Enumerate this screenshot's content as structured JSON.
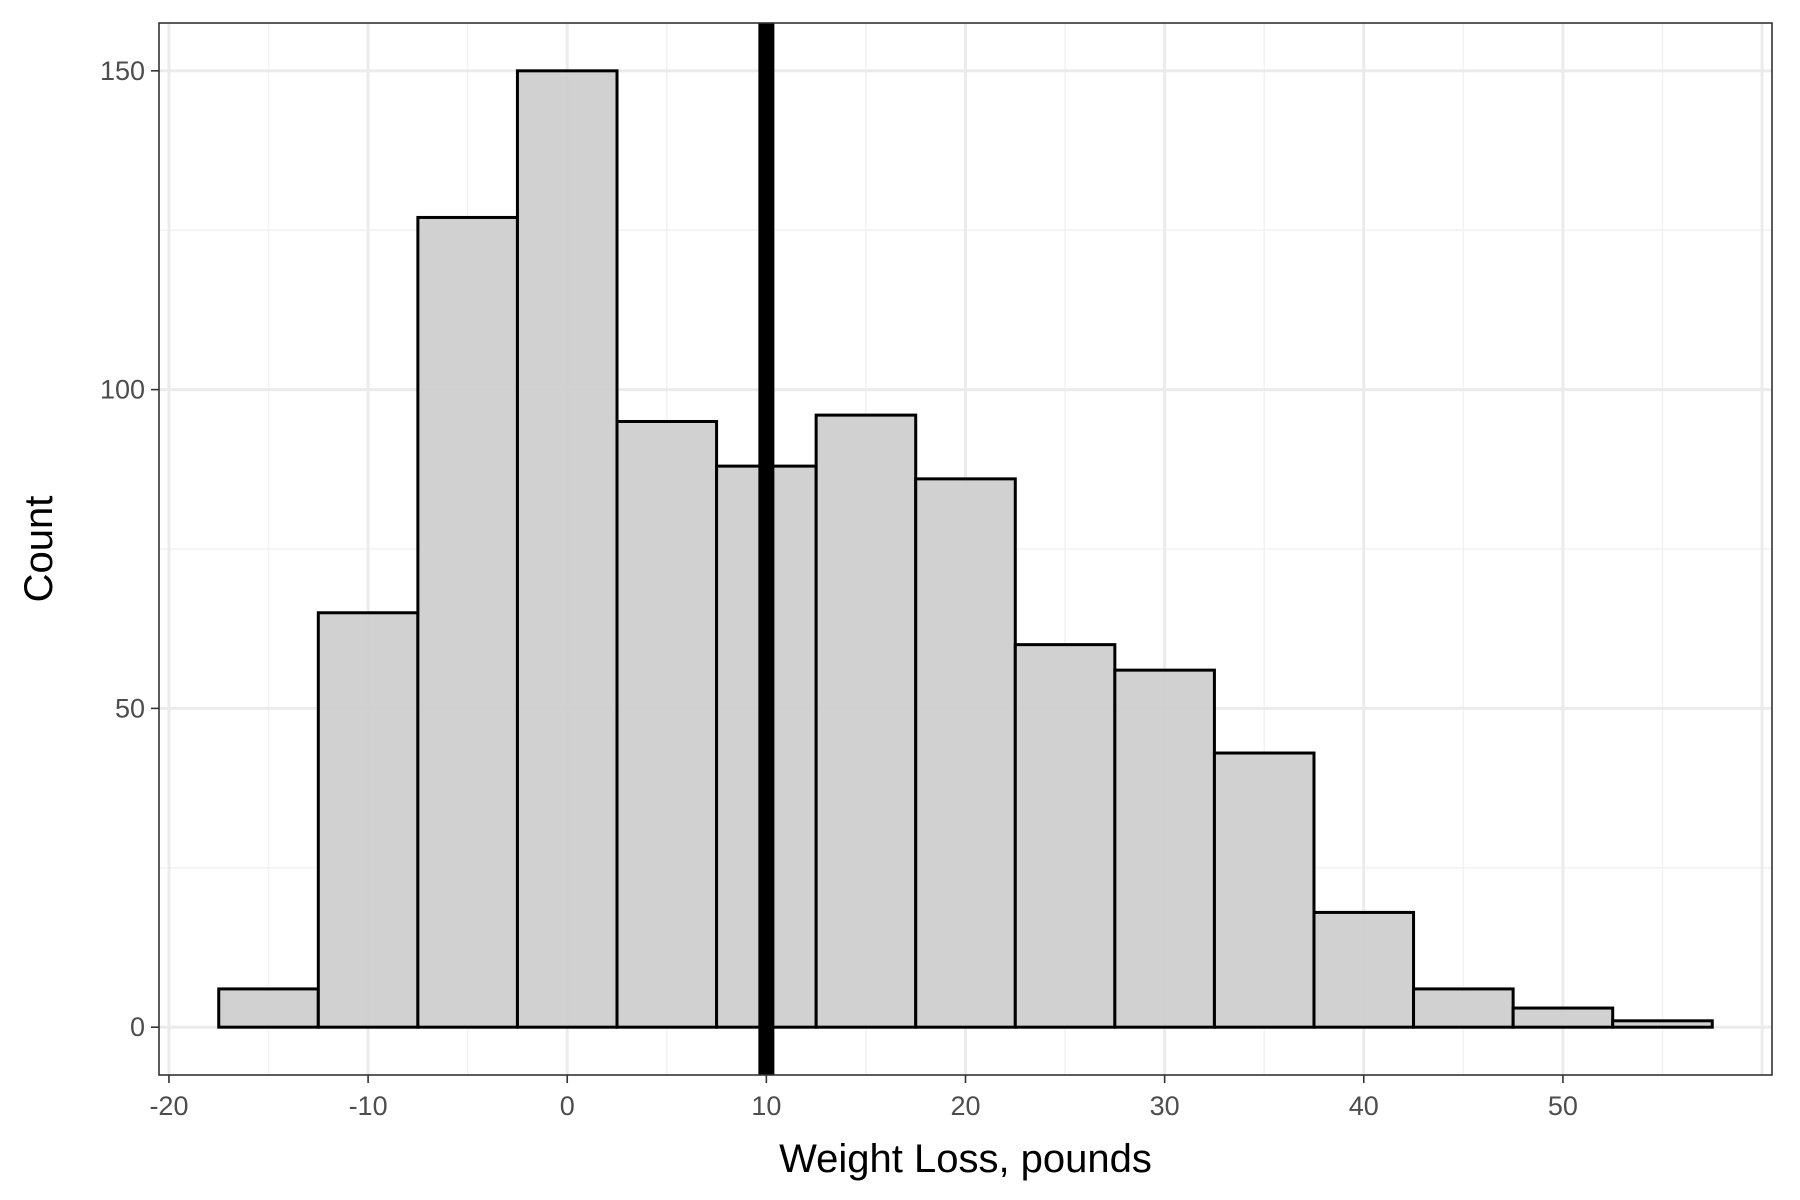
{
  "chart_data": {
    "type": "bar",
    "xlabel": "Weight Loss, pounds",
    "ylabel": "Count",
    "xlim": [
      -20.5,
      60.5
    ],
    "ylim": [
      -7.5,
      157.5
    ],
    "x_ticks": [
      -20,
      -10,
      0,
      10,
      20,
      30,
      40,
      50
    ],
    "x_tick_labels": [
      "-20",
      "-10",
      "0",
      "10",
      "20",
      "30",
      "40",
      "50"
    ],
    "y_ticks": [
      0,
      50,
      100,
      150
    ],
    "y_tick_labels": [
      "0",
      "50",
      "100",
      "150"
    ],
    "bin_width": 5,
    "bins": [
      {
        "x_start": -17.5,
        "x_end": -12.5,
        "count": 6
      },
      {
        "x_start": -12.5,
        "x_end": -7.5,
        "count": 65
      },
      {
        "x_start": -7.5,
        "x_end": -2.5,
        "count": 127
      },
      {
        "x_start": -2.5,
        "x_end": 2.5,
        "count": 150
      },
      {
        "x_start": 2.5,
        "x_end": 7.5,
        "count": 95
      },
      {
        "x_start": 7.5,
        "x_end": 12.5,
        "count": 88
      },
      {
        "x_start": 12.5,
        "x_end": 17.5,
        "count": 96
      },
      {
        "x_start": 17.5,
        "x_end": 22.5,
        "count": 86
      },
      {
        "x_start": 22.5,
        "x_end": 27.5,
        "count": 60
      },
      {
        "x_start": 27.5,
        "x_end": 32.5,
        "count": 56
      },
      {
        "x_start": 32.5,
        "x_end": 37.5,
        "count": 43
      },
      {
        "x_start": 37.5,
        "x_end": 42.5,
        "count": 18
      },
      {
        "x_start": 42.5,
        "x_end": 47.5,
        "count": 6
      },
      {
        "x_start": 47.5,
        "x_end": 52.5,
        "count": 3
      },
      {
        "x_start": 52.5,
        "x_end": 57.5,
        "count": 1
      }
    ],
    "reference_line_x": 10,
    "grid": true,
    "bar_fill": "#cfcfcf",
    "bar_stroke": "#000000",
    "reference_line_color": "#000000"
  }
}
